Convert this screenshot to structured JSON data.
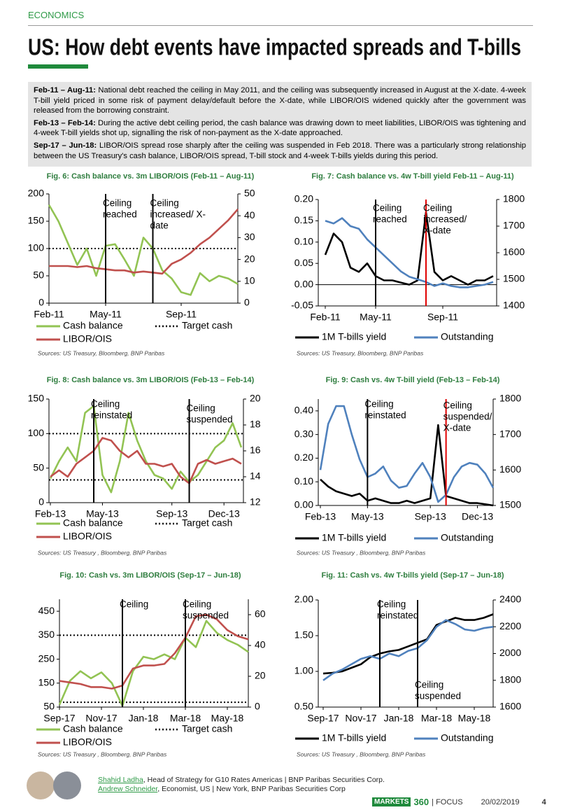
{
  "header": {
    "section": "ECONOMICS",
    "title": "US: How debt events have impacted spreads and T-bills"
  },
  "summary": [
    {
      "lead": "Feb-11 – Aug-11:",
      "text": "National debt reached the ceiling in May 2011, and the ceiling was subsequently increased in August at the X-date. 4-week T-bill yield priced in some risk of payment delay/default before the X-date, while LIBOR/OIS widened quickly after the government was released from the borrowing constraint."
    },
    {
      "lead": "Feb-13 – Feb-14:",
      "text": "During the active debt ceiling period, the cash balance was drawing down to meet liabilities, LIBOR/OIS was tightening and 4-week T-bill yields shot up, signalling the risk of non-payment as the X-date approached."
    },
    {
      "lead": "Sep-17 – Jun-18:",
      "text": "LIBOR/OIS spread rose sharply after the ceiling was suspended in Feb 2018. There was a particularly strong relationship between the US Treasury's cash balance, LIBOR/OIS spread, T-bill stock and 4-week T-bills yields during this period."
    }
  ],
  "chart_data": [
    {
      "type": "line",
      "title": "Fig. 6: Cash balance vs. 3m LIBOR/OIS (Feb-11 – Aug-11)",
      "source": "Sources: US Treasury, Bloomberg, BNP Paribas",
      "categories": [
        "Feb-11",
        null,
        null,
        null,
        null,
        null,
        "May-11",
        null,
        null,
        null,
        null,
        null,
        null,
        null,
        "Sep-11",
        null,
        null,
        null,
        null,
        null,
        null
      ],
      "ylim": [
        0,
        200
      ],
      "yticks": [
        0,
        50,
        100,
        150,
        200
      ],
      "y2lim": [
        0,
        50
      ],
      "y2ticks": [
        0,
        10,
        20,
        30,
        40,
        50
      ],
      "series": [
        {
          "name": "Cash balance",
          "color": "#92c353",
          "values": [
            180,
            150,
            110,
            70,
            100,
            50,
            105,
            108,
            80,
            50,
            120,
            100,
            60,
            45,
            20,
            15,
            55,
            40,
            50,
            45,
            35
          ]
        },
        {
          "name": "LIBOR/OIS",
          "color": "#c0504d",
          "axis": "y2",
          "values": [
            17,
            17,
            17,
            16.5,
            17,
            16,
            15.5,
            15,
            15,
            14,
            14.5,
            14,
            13.5,
            18,
            20,
            23,
            27,
            30,
            34,
            38,
            43
          ]
        }
      ],
      "target": {
        "name": "Target cash",
        "values": [
          100
        ]
      },
      "events": [
        {
          "text": [
            "Ceiling",
            "reached"
          ],
          "x": 6,
          "color": "#000000"
        },
        {
          "text": [
            "Ceiling",
            "increased/  X-",
            "date"
          ],
          "x": 11,
          "color": "#000000"
        }
      ]
    },
    {
      "type": "line",
      "title": "Fig. 7: Cash balance vs. 4w T-bill yield Feb-11 – Aug-11)",
      "source": "Sources: US Treasury, Bloomberg, BNP Paribas",
      "categories": [
        "Feb-11",
        null,
        null,
        null,
        null,
        null,
        "May-11",
        null,
        null,
        null,
        null,
        null,
        null,
        null,
        "Sep-11",
        null,
        null,
        null,
        null,
        null,
        null
      ],
      "ylim": [
        -0.05,
        0.2
      ],
      "yticks": [
        {
          "value": -0.05,
          "label": "-0.05"
        },
        {
          "value": 0,
          "label": "0.00"
        },
        {
          "value": 0.05,
          "label": "0.05"
        },
        {
          "value": 0.1,
          "label": "0.10"
        },
        {
          "value": 0.15,
          "label": "0.15"
        },
        {
          "value": 0.2,
          "label": "0.20"
        }
      ],
      "y2lim": [
        1400,
        1800
      ],
      "y2ticks": [
        1400,
        1500,
        1600,
        1700,
        1800
      ],
      "series": [
        {
          "name": "1M T-bills yield",
          "color": "#000000",
          "values": [
            0.07,
            0.12,
            0.1,
            0.04,
            0.03,
            0.05,
            0.02,
            0.01,
            0.01,
            0.005,
            0,
            0.01,
            0.17,
            0.03,
            0.01,
            0.02,
            0.01,
            0,
            0.01,
            0.01,
            0.02
          ]
        },
        {
          "name": "Outstanding",
          "color": "#4f81bd",
          "axis": "y2",
          "values": [
            1720,
            1710,
            1730,
            1700,
            1690,
            1650,
            1620,
            1590,
            1560,
            1530,
            1510,
            1500,
            1490,
            1475,
            1485,
            1475,
            1470,
            1470,
            1475,
            1480,
            1490
          ]
        }
      ],
      "events": [
        {
          "text": [
            "Ceiling",
            "reached"
          ],
          "x": 6,
          "color": "#000000"
        },
        {
          "text": [
            "Ceiling",
            "increased/",
            "X-date"
          ],
          "x": 12,
          "color": "#e00000"
        }
      ]
    },
    {
      "type": "line",
      "title": "Fig. 8: Cash balance vs. 3m LIBOR/OIS (Feb-13 – Feb-14)",
      "source": "Sources: US Treasury , Bloomberg, BNP Paribas",
      "categories": [
        "Feb-13",
        null,
        null,
        null,
        null,
        null,
        "May-13",
        null,
        null,
        null,
        null,
        null,
        null,
        null,
        "Sep-13",
        null,
        null,
        null,
        null,
        null,
        "Dec-13",
        null,
        null
      ],
      "ylim": [
        0,
        150
      ],
      "yticks": [
        0,
        50,
        100,
        150
      ],
      "y2lim": [
        12,
        20
      ],
      "y2ticks": [
        12,
        14,
        16,
        18,
        20
      ],
      "series": [
        {
          "name": "Cash balance",
          "color": "#92c353",
          "values": [
            35,
            60,
            80,
            60,
            130,
            140,
            40,
            15,
            60,
            130,
            90,
            60,
            40,
            35,
            20,
            45,
            30,
            40,
            60,
            80,
            90,
            115,
            80
          ]
        },
        {
          "name": "LIBOR/OIS",
          "color": "#c0504d",
          "axis": "y2",
          "values": [
            14,
            14.5,
            14,
            15,
            15.5,
            16,
            17,
            16.8,
            16,
            15.5,
            16,
            15,
            15,
            14.8,
            15,
            14,
            13.5,
            15,
            15.3,
            15,
            15.2,
            15.4,
            15
          ]
        }
      ],
      "target": {
        "name": "Target cash",
        "values": [
          100,
          33
        ]
      },
      "events": [
        {
          "text": [
            "Ceiling",
            "reinstated"
          ],
          "x": 5,
          "color": "#000000"
        },
        {
          "text": [
            "Ceiling",
            "suspended"
          ],
          "x": 16,
          "color": "#000000"
        }
      ]
    },
    {
      "type": "line",
      "title": "Fig. 9: Cash vs. 4w T-bill yield (Feb-13 – Feb-14)",
      "source": "Sources: US Treasury , Bloomberg, BNP Paribas",
      "categories": [
        "Feb-13",
        null,
        null,
        null,
        null,
        null,
        "May-13",
        null,
        null,
        null,
        null,
        null,
        null,
        null,
        "Sep-13",
        null,
        null,
        null,
        null,
        null,
        "Dec-13",
        null,
        null
      ],
      "ylim": [
        0,
        0.45
      ],
      "yticks": [
        {
          "value": 0,
          "label": "0.00"
        },
        {
          "value": 0.1,
          "label": "0.10"
        },
        {
          "value": 0.2,
          "label": "0.20"
        },
        {
          "value": 0.3,
          "label": "0.30"
        },
        {
          "value": 0.4,
          "label": "0.40"
        }
      ],
      "y2lim": [
        1500,
        1800
      ],
      "y2ticks": [
        1500,
        1600,
        1700,
        1800
      ],
      "series": [
        {
          "name": "1M T-bills yield",
          "color": "#000000",
          "values": [
            0.11,
            0.08,
            0.06,
            0.05,
            0.04,
            0.05,
            0.02,
            0.03,
            0.02,
            0.01,
            0.01,
            0.02,
            0.01,
            0.02,
            0.03,
            0.34,
            0.04,
            0.03,
            0.02,
            0.01,
            0.01,
            0.005,
            0
          ]
        },
        {
          "name": "Outstanding",
          "color": "#4f81bd",
          "axis": "y2",
          "values": [
            1600,
            1730,
            1780,
            1780,
            1700,
            1630,
            1580,
            1590,
            1610,
            1570,
            1550,
            1555,
            1590,
            1620,
            1580,
            1510,
            1530,
            1580,
            1610,
            1620,
            1615,
            1590,
            1550
          ]
        }
      ],
      "events": [
        {
          "text": [
            "Ceiling",
            "reinstated"
          ],
          "x": 6,
          "color": "#000000"
        },
        {
          "text": [
            "Ceiling",
            "suspended/",
            "X-date"
          ],
          "x": 16,
          "color": "#e00000"
        }
      ]
    },
    {
      "type": "line",
      "title": "Fig. 10: Cash vs. 3m LIBOR/OIS (Sep-17 – Jun-18)",
      "source": "Sources: US Treasury , Bloomberg, BNP Paribas",
      "categories": [
        "Sep-17",
        null,
        null,
        null,
        "Nov-17",
        null,
        null,
        null,
        "Jan-18",
        null,
        null,
        null,
        "Mar-18",
        null,
        null,
        null,
        "May-18",
        null,
        null
      ],
      "ylim": [
        50,
        500
      ],
      "yticks": [
        50,
        150,
        250,
        350,
        450
      ],
      "y2lim": [
        0,
        70
      ],
      "y2ticks": [
        0,
        20,
        40,
        60
      ],
      "series": [
        {
          "name": "Cash balance",
          "color": "#92c353",
          "values": [
            60,
            160,
            200,
            170,
            195,
            150,
            55,
            200,
            260,
            250,
            270,
            250,
            340,
            300,
            410,
            360,
            330,
            310,
            280
          ]
        },
        {
          "name": "LIBOR/OIS",
          "color": "#c0504d",
          "axis": "y2",
          "values": [
            17,
            16,
            15,
            13,
            13,
            12,
            14,
            25,
            27,
            27,
            28,
            35,
            45,
            59,
            60,
            57,
            50,
            46,
            44
          ]
        }
      ],
      "target": {
        "name": "Target cash",
        "values": [
          350,
          70
        ]
      },
      "events": [
        {
          "text": [
            "Ceiling"
          ],
          "x": 6,
          "color": "#000000"
        },
        {
          "text": [
            "Ceiling",
            "suspended"
          ],
          "x": 12,
          "color": "#000000"
        }
      ]
    },
    {
      "type": "line",
      "title": "Fig. 11: Cash vs. 4w T-bills yield (Sep-17 – Jun-18)",
      "source": "Sources: US Treasury , Bloomberg, BNP Paribas",
      "categories": [
        "Sep-17",
        null,
        null,
        null,
        "Nov-17",
        null,
        null,
        null,
        "Jan-18",
        null,
        null,
        null,
        "Mar-18",
        null,
        null,
        null,
        "May-18",
        null,
        null
      ],
      "ylim": [
        0.5,
        2
      ],
      "yticks": [
        {
          "value": 0.5,
          "label": "0.50"
        },
        {
          "value": 1,
          "label": "1.00"
        },
        {
          "value": 1.5,
          "label": "1.50"
        },
        {
          "value": 2,
          "label": "2.00"
        }
      ],
      "y2lim": [
        1600,
        2400
      ],
      "y2ticks": [
        1600,
        1800,
        2000,
        2200,
        2400
      ],
      "series": [
        {
          "name": "1M T-bills yield",
          "color": "#000000",
          "values": [
            0.97,
            0.98,
            1,
            1.05,
            1.1,
            1.2,
            1.25,
            1.28,
            1.3,
            1.35,
            1.4,
            1.45,
            1.65,
            1.7,
            1.75,
            1.72,
            1.72,
            1.75,
            1.8
          ]
        },
        {
          "name": "Outstanding",
          "color": "#4f81bd",
          "axis": "y2",
          "values": [
            1800,
            1850,
            1880,
            1920,
            1960,
            1980,
            1960,
            2000,
            1980,
            2020,
            2040,
            2100,
            2200,
            2250,
            2220,
            2180,
            2170,
            2190,
            2200
          ]
        }
      ],
      "events": [
        {
          "text": [
            "Ceiling",
            "reinstated"
          ],
          "x": 6,
          "color": "#000000"
        },
        {
          "text": [
            "Ceiling",
            "suspended"
          ],
          "x": 10,
          "color": "#000000"
        }
      ]
    }
  ],
  "footer": {
    "authors": [
      {
        "name": "Shahid Ladha",
        "role": ", Head of Strategy for G10 Rates Americas | BNP Paribas Securities Corp."
      },
      {
        "name": "Andrew Schneider",
        "role": ", Economist, US | New York, BNP Paribas Securities Corp"
      }
    ],
    "brand": "MARKETS",
    "brand_number": "360",
    "publication": "| FOCUS",
    "date": "20/02/2019",
    "page": "4"
  }
}
